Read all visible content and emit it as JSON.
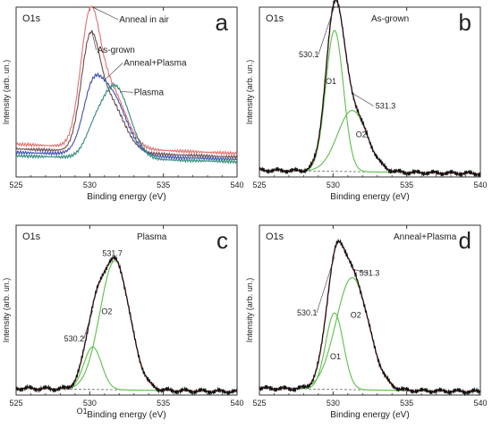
{
  "chart_data": [
    {
      "type": "line",
      "panel_letter": "a",
      "core_label": "O1s",
      "xlabel": "Binding energy (eV)",
      "ylabel": "Intensity (arb. un.)",
      "xlim": [
        525,
        540
      ],
      "xticks": [
        525,
        530,
        535,
        540
      ],
      "y_ticks_shown": false,
      "series": [
        {
          "name": "Anneal in air",
          "color": "#e07070",
          "baseline": [
            0.28,
            0.2
          ],
          "peaks": [
            {
              "center": 530.0,
              "amp": 1.0,
              "w": 0.65
            },
            {
              "center": 531.4,
              "amp": 0.5,
              "w": 1.0
            }
          ]
        },
        {
          "name": "As-grown",
          "color": "#6b4a4a",
          "baseline": [
            0.24,
            0.17
          ],
          "peaks": [
            {
              "center": 530.0,
              "amp": 0.82,
              "w": 0.62
            },
            {
              "center": 531.3,
              "amp": 0.44,
              "w": 1.0
            }
          ]
        },
        {
          "name": "Anneal+Plasma",
          "color": "#3a4fb0",
          "baseline": [
            0.21,
            0.15
          ],
          "peaks": [
            {
              "center": 530.1,
              "amp": 0.32,
              "w": 0.62
            },
            {
              "center": 531.3,
              "amp": 0.55,
              "w": 1.1
            }
          ]
        },
        {
          "name": "Plasma",
          "color": "#2f8a7a",
          "baseline": [
            0.18,
            0.13
          ],
          "peaks": [
            {
              "center": 530.2,
              "amp": 0.12,
              "w": 0.6
            },
            {
              "center": 531.7,
              "amp": 0.62,
              "w": 1.0
            }
          ]
        }
      ]
    },
    {
      "type": "line",
      "panel_letter": "b",
      "core_label": "O1s",
      "title": "As-grown",
      "xlabel": "Binding energy (eV)",
      "ylabel": "Intensity (arb. un.)",
      "xlim": [
        525,
        540
      ],
      "xticks": [
        525,
        530,
        535,
        540
      ],
      "baseline": [
        0.04,
        0.02
      ],
      "components": [
        {
          "name": "O1",
          "center": 530.1,
          "amp": 0.83,
          "w": 0.6,
          "label_value": "530.1"
        },
        {
          "name": "O2",
          "center": 531.3,
          "amp": 0.36,
          "w": 1.0,
          "label_value": "531.3"
        }
      ]
    },
    {
      "type": "line",
      "panel_letter": "c",
      "core_label": "O1s",
      "title": "Plasma",
      "xlabel": "Binding energy (eV)",
      "ylabel": "Intensity (arb. un.)",
      "xlim": [
        525,
        540
      ],
      "xticks": [
        525,
        530,
        535,
        540
      ],
      "baseline": [
        0.04,
        0.02
      ],
      "components": [
        {
          "name": "O1",
          "center": 530.2,
          "amp": 0.25,
          "w": 0.6,
          "label_value": "530.2"
        },
        {
          "name": "O2",
          "center": 531.7,
          "amp": 0.76,
          "w": 1.0,
          "label_value": "531.7"
        }
      ]
    },
    {
      "type": "line",
      "panel_letter": "d",
      "core_label": "O1s",
      "title": "Anneal+Plasma",
      "xlabel": "Binding energy (eV)",
      "ylabel": "Intensity (arb. un.)",
      "xlim": [
        525,
        540
      ],
      "xticks": [
        525,
        530,
        535,
        540
      ],
      "baseline": [
        0.04,
        0.02
      ],
      "components": [
        {
          "name": "O1",
          "center": 530.1,
          "amp": 0.45,
          "w": 0.6,
          "label_value": "530.1"
        },
        {
          "name": "O2",
          "center": 531.3,
          "amp": 0.66,
          "w": 1.1,
          "label_value": "531.3"
        }
      ]
    }
  ],
  "colors": {
    "component": "#5cbf4a",
    "envelope": "#e36a6a",
    "data": "#111111"
  }
}
